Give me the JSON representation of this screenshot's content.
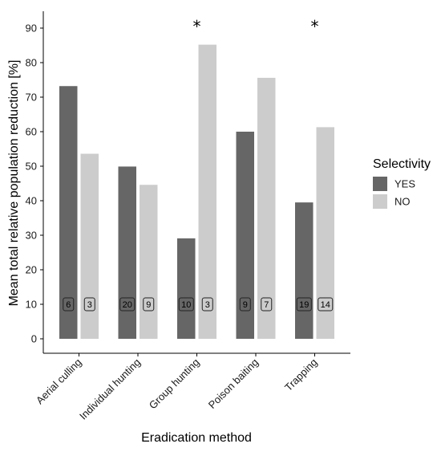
{
  "chart_data": {
    "type": "bar",
    "xlabel": "Eradication method",
    "ylabel": "Mean total relative population reduction [%]",
    "ylim": [
      0,
      95
    ],
    "yticks": [
      0,
      10,
      20,
      30,
      40,
      50,
      60,
      70,
      80,
      90
    ],
    "grid": false,
    "categories": [
      "Aerial culling",
      "Individual hunting",
      "Group hunting",
      "Poison baiting",
      "Trapping"
    ],
    "series": [
      {
        "name": "YES",
        "color": "#666666",
        "values": [
          73.2,
          49.9,
          29.1,
          60.0,
          39.5
        ],
        "counts": [
          "6",
          "20",
          "10",
          "9",
          "19"
        ]
      },
      {
        "name": "NO",
        "color": "#cccccc",
        "values": [
          53.6,
          44.6,
          85.2,
          75.6,
          61.3
        ],
        "counts": [
          "3",
          "9",
          "3",
          "7",
          "14"
        ]
      }
    ],
    "legend": {
      "title": "Selectivity",
      "position": "right"
    },
    "significance": [
      "",
      "",
      "*",
      "",
      "*"
    ],
    "count_label_y": 10
  }
}
